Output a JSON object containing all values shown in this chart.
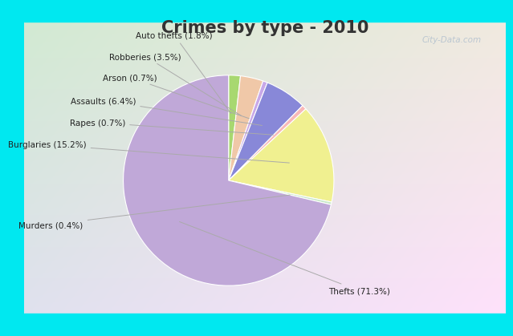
{
  "title": "Crimes by type - 2010",
  "ordered_labels": [
    "Auto thefts",
    "Robberies",
    "Arson",
    "Assaults",
    "Rapes",
    "Burglaries",
    "Murders",
    "Thefts"
  ],
  "ordered_values": [
    1.8,
    3.5,
    0.7,
    6.4,
    0.7,
    15.2,
    0.4,
    71.3
  ],
  "ordered_colors": [
    "#a8d870",
    "#f0c8a8",
    "#c8a8e8",
    "#8888d8",
    "#f8b8b8",
    "#f0f090",
    "#c8e8c8",
    "#c0a8d8"
  ],
  "ordered_label_texts": [
    "Auto thefts (1.8%)",
    "Robberies (3.5%)",
    "Arson (0.7%)",
    "Assaults (6.4%)",
    "Rapes (0.7%)",
    "Burglaries (15.2%)",
    "Murders (0.4%)",
    "Thefts (71.3%)"
  ],
  "title_fontsize": 15,
  "title_fontweight": "bold",
  "title_color": "#333333",
  "background_cyan": "#00e8f0",
  "watermark": "City-Data.com",
  "label_fontsize": 7.5,
  "label_color": "#222222",
  "line_color": "#aaaaaa"
}
